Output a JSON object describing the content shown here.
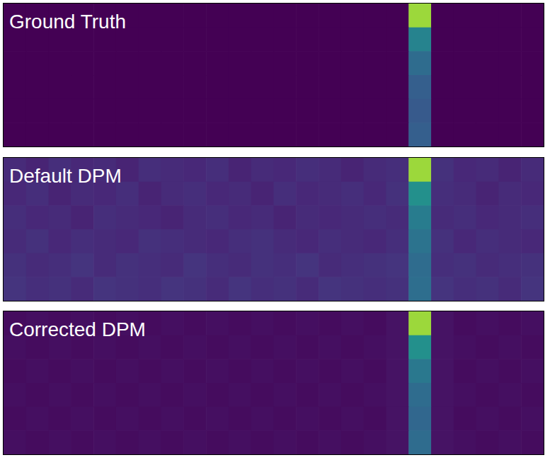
{
  "chart_data": [
    {
      "type": "heatmap",
      "title": "Ground Truth",
      "color": "viridis",
      "tick_labels": false,
      "xlim": [
        0,
        24
      ],
      "ylim": [
        0,
        6
      ],
      "color_range": [
        0,
        1
      ],
      "cells": [
        [
          0,
          0,
          0,
          0,
          0,
          0,
          0,
          0,
          0,
          0,
          0,
          0,
          0,
          0,
          0,
          0,
          0,
          0,
          0.85,
          0,
          0,
          0,
          0,
          0
        ],
        [
          0,
          0,
          0,
          0,
          0,
          0,
          0,
          0,
          0,
          0,
          0,
          0,
          0,
          0,
          0,
          0,
          0,
          0,
          0.45,
          0,
          0,
          0,
          0,
          0
        ],
        [
          0,
          0,
          0,
          0,
          0,
          0,
          0,
          0,
          0,
          0,
          0,
          0,
          0,
          0,
          0,
          0,
          0,
          0,
          0.35,
          0,
          0,
          0,
          0,
          0
        ],
        [
          0,
          0,
          0,
          0,
          0,
          0,
          0,
          0,
          0,
          0,
          0,
          0,
          0,
          0,
          0,
          0,
          0,
          0,
          0.3,
          0,
          0,
          0,
          0,
          0
        ],
        [
          0,
          0,
          0,
          0,
          0,
          0,
          0,
          0,
          0,
          0,
          0,
          0,
          0,
          0,
          0,
          0,
          0,
          0,
          0.28,
          0,
          0,
          0,
          0,
          0
        ],
        [
          0,
          0,
          0,
          0,
          0,
          0,
          0,
          0,
          0,
          0,
          0,
          0,
          0,
          0,
          0,
          0,
          0,
          0,
          0.3,
          0,
          0,
          0,
          0,
          0
        ]
      ]
    },
    {
      "type": "heatmap",
      "title": "Default DPM",
      "color": "viridis",
      "tick_labels": false,
      "xlim": [
        0,
        24
      ],
      "ylim": [
        0,
        6
      ],
      "color_range": [
        0,
        1
      ],
      "cells": [
        [
          0.12,
          0.1,
          0.13,
          0.11,
          0.12,
          0.1,
          0.13,
          0.12,
          0.11,
          0.13,
          0.1,
          0.12,
          0.11,
          0.13,
          0.12,
          0.1,
          0.12,
          0.13,
          0.85,
          0.14,
          0.11,
          0.12,
          0.1,
          0.12
        ],
        [
          0.11,
          0.13,
          0.1,
          0.12,
          0.11,
          0.13,
          0.1,
          0.12,
          0.13,
          0.11,
          0.12,
          0.1,
          0.13,
          0.11,
          0.12,
          0.13,
          0.11,
          0.14,
          0.5,
          0.13,
          0.12,
          0.1,
          0.12,
          0.11
        ],
        [
          0.13,
          0.11,
          0.12,
          0.1,
          0.13,
          0.12,
          0.11,
          0.1,
          0.12,
          0.13,
          0.11,
          0.12,
          0.1,
          0.12,
          0.11,
          0.12,
          0.13,
          0.12,
          0.42,
          0.12,
          0.13,
          0.11,
          0.12,
          0.13
        ],
        [
          0.12,
          0.14,
          0.11,
          0.13,
          0.12,
          0.11,
          0.14,
          0.13,
          0.12,
          0.11,
          0.13,
          0.14,
          0.12,
          0.11,
          0.13,
          0.12,
          0.11,
          0.13,
          0.38,
          0.14,
          0.11,
          0.13,
          0.12,
          0.11
        ],
        [
          0.14,
          0.12,
          0.13,
          0.15,
          0.12,
          0.14,
          0.13,
          0.12,
          0.15,
          0.13,
          0.12,
          0.14,
          0.13,
          0.15,
          0.12,
          0.13,
          0.14,
          0.15,
          0.35,
          0.13,
          0.14,
          0.12,
          0.13,
          0.14
        ],
        [
          0.15,
          0.13,
          0.14,
          0.12,
          0.15,
          0.14,
          0.13,
          0.15,
          0.14,
          0.12,
          0.15,
          0.13,
          0.14,
          0.12,
          0.15,
          0.14,
          0.13,
          0.14,
          0.36,
          0.15,
          0.13,
          0.14,
          0.12,
          0.15
        ]
      ]
    },
    {
      "type": "heatmap",
      "title": "Corrected DPM",
      "color": "viridis",
      "tick_labels": false,
      "xlim": [
        0,
        24
      ],
      "ylim": [
        0,
        6
      ],
      "color_range": [
        0,
        1
      ],
      "cells": [
        [
          0.03,
          0.04,
          0.03,
          0.04,
          0.03,
          0.04,
          0.03,
          0.04,
          0.03,
          0.04,
          0.03,
          0.04,
          0.03,
          0.04,
          0.03,
          0.04,
          0.03,
          0.05,
          0.85,
          0.05,
          0.03,
          0.04,
          0.03,
          0.04
        ],
        [
          0.04,
          0.03,
          0.04,
          0.03,
          0.04,
          0.03,
          0.04,
          0.03,
          0.04,
          0.03,
          0.04,
          0.03,
          0.04,
          0.03,
          0.04,
          0.03,
          0.04,
          0.05,
          0.5,
          0.05,
          0.04,
          0.03,
          0.04,
          0.03
        ],
        [
          0.03,
          0.04,
          0.03,
          0.04,
          0.03,
          0.04,
          0.03,
          0.04,
          0.03,
          0.04,
          0.03,
          0.04,
          0.03,
          0.04,
          0.03,
          0.04,
          0.03,
          0.05,
          0.4,
          0.05,
          0.03,
          0.04,
          0.03,
          0.04
        ],
        [
          0.04,
          0.03,
          0.04,
          0.03,
          0.04,
          0.03,
          0.04,
          0.03,
          0.04,
          0.03,
          0.04,
          0.03,
          0.04,
          0.03,
          0.04,
          0.03,
          0.04,
          0.05,
          0.35,
          0.05,
          0.04,
          0.03,
          0.04,
          0.03
        ],
        [
          0.03,
          0.04,
          0.03,
          0.04,
          0.03,
          0.04,
          0.03,
          0.04,
          0.03,
          0.04,
          0.03,
          0.04,
          0.03,
          0.04,
          0.03,
          0.04,
          0.03,
          0.05,
          0.33,
          0.05,
          0.03,
          0.04,
          0.03,
          0.04
        ],
        [
          0.04,
          0.03,
          0.04,
          0.03,
          0.04,
          0.03,
          0.04,
          0.03,
          0.04,
          0.03,
          0.04,
          0.03,
          0.04,
          0.03,
          0.04,
          0.03,
          0.04,
          0.05,
          0.35,
          0.05,
          0.04,
          0.03,
          0.04,
          0.03
        ]
      ]
    }
  ]
}
